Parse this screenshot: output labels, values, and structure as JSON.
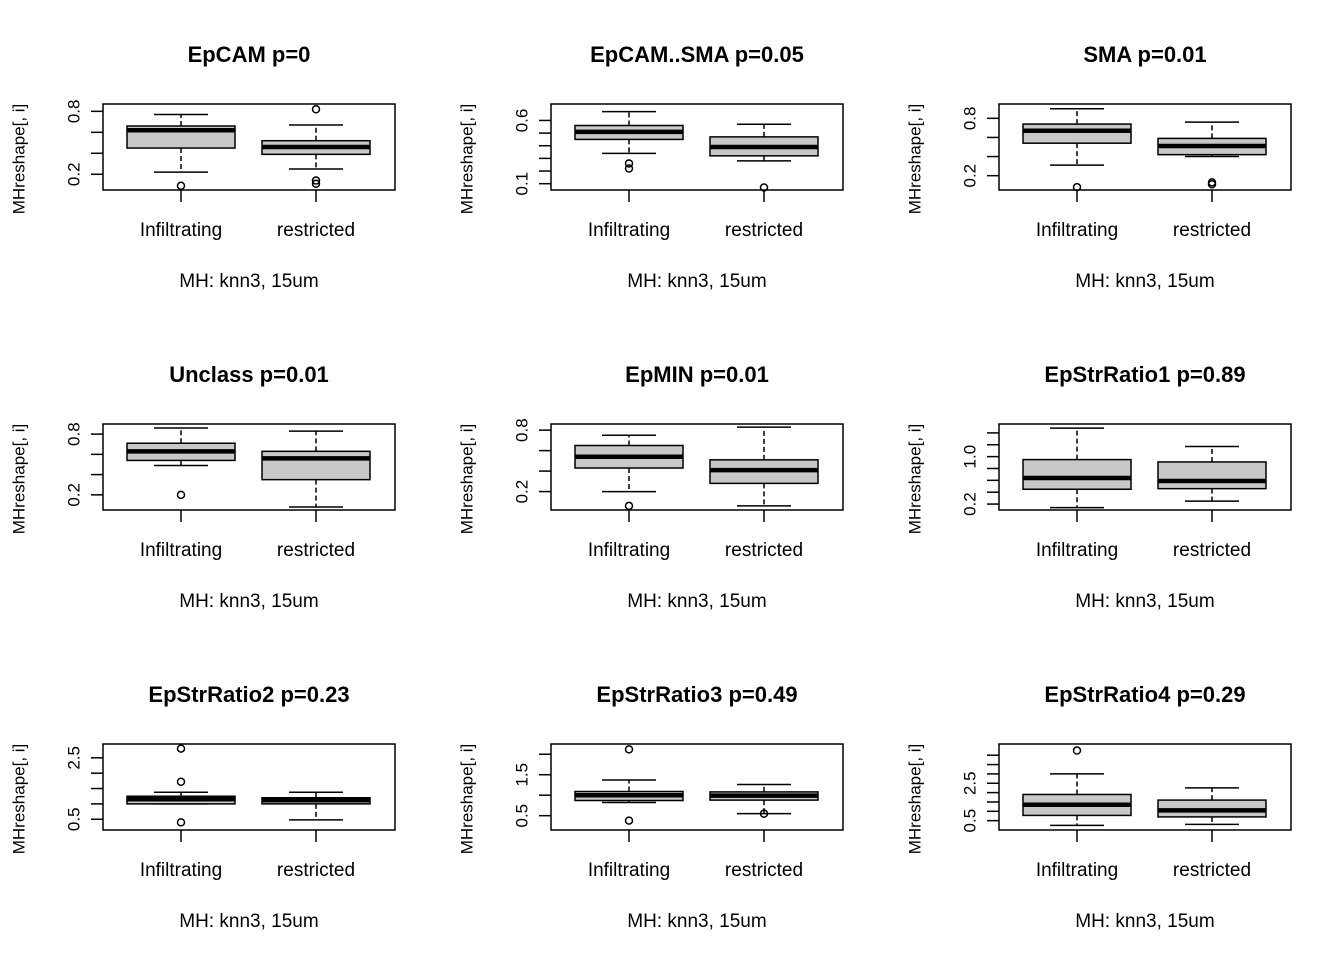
{
  "figure": {
    "styles": {
      "box_fill": "#c8c8c8",
      "line": "#000000",
      "background": "#ffffff"
    }
  },
  "chart_data": [
    {
      "type": "boxplot",
      "title": "EpCAM p=0",
      "xlabel": "MH: knn3, 15um",
      "ylabel": "MHreshape[, i]",
      "categories": [
        "Infiltrating",
        "restricted"
      ],
      "ylim": [
        0.05,
        0.87
      ],
      "yticks": [
        0.2,
        0.4,
        0.6,
        0.8
      ],
      "ytick_labels": [
        "0.2",
        "",
        "",
        "0.8"
      ],
      "boxes": [
        {
          "min": 0.22,
          "q1": 0.45,
          "median": 0.62,
          "q3": 0.66,
          "max": 0.77,
          "outliers": [
            0.09
          ]
        },
        {
          "min": 0.25,
          "q1": 0.39,
          "median": 0.46,
          "q3": 0.52,
          "max": 0.67,
          "outliers": [
            0.11,
            0.14,
            0.82
          ]
        }
      ]
    },
    {
      "type": "boxplot",
      "title": "EpCAM..SMA p=0.05",
      "xlabel": "MH: knn3, 15um",
      "ylabel": "MHreshape[, i]",
      "categories": [
        "Infiltrating",
        "restricted"
      ],
      "ylim": [
        0.05,
        0.73
      ],
      "yticks": [
        0.1,
        0.2,
        0.3,
        0.4,
        0.5,
        0.6
      ],
      "ytick_labels": [
        "0.1",
        "",
        "",
        "",
        "",
        "0.6"
      ],
      "boxes": [
        {
          "min": 0.34,
          "q1": 0.45,
          "median": 0.51,
          "q3": 0.56,
          "max": 0.67,
          "outliers": [
            0.22,
            0.26
          ]
        },
        {
          "min": 0.28,
          "q1": 0.32,
          "median": 0.39,
          "q3": 0.47,
          "max": 0.57,
          "outliers": [
            0.07
          ]
        }
      ]
    },
    {
      "type": "boxplot",
      "title": "SMA p=0.01",
      "xlabel": "MH: knn3, 15um",
      "ylabel": "MHreshape[, i]",
      "categories": [
        "Infiltrating",
        "restricted"
      ],
      "ylim": [
        0.05,
        0.95
      ],
      "yticks": [
        0.2,
        0.4,
        0.6,
        0.8
      ],
      "ytick_labels": [
        "0.2",
        "",
        "",
        "0.8"
      ],
      "boxes": [
        {
          "min": 0.31,
          "q1": 0.54,
          "median": 0.67,
          "q3": 0.74,
          "max": 0.9,
          "outliers": [
            0.08
          ]
        },
        {
          "min": 0.4,
          "q1": 0.42,
          "median": 0.51,
          "q3": 0.59,
          "max": 0.76,
          "outliers": [
            0.11,
            0.13
          ]
        }
      ]
    },
    {
      "type": "boxplot",
      "title": "Unclass p=0.01",
      "xlabel": "MH: knn3, 15um",
      "ylabel": "MHreshape[, i]",
      "categories": [
        "Infiltrating",
        "restricted"
      ],
      "ylim": [
        0.05,
        0.9
      ],
      "yticks": [
        0.2,
        0.4,
        0.6,
        0.8
      ],
      "ytick_labels": [
        "0.2",
        "",
        "",
        "0.8"
      ],
      "boxes": [
        {
          "min": 0.49,
          "q1": 0.54,
          "median": 0.63,
          "q3": 0.71,
          "max": 0.86,
          "outliers": [
            0.2
          ]
        },
        {
          "min": 0.08,
          "q1": 0.35,
          "median": 0.56,
          "q3": 0.63,
          "max": 0.83,
          "outliers": []
        }
      ]
    },
    {
      "type": "boxplot",
      "title": "EpMIN p=0.01",
      "xlabel": "MH: knn3, 15um",
      "ylabel": "MHreshape[, i]",
      "categories": [
        "Infiltrating",
        "restricted"
      ],
      "ylim": [
        0.02,
        0.86
      ],
      "yticks": [
        0.2,
        0.4,
        0.6,
        0.8
      ],
      "ytick_labels": [
        "0.2",
        "",
        "",
        "0.8"
      ],
      "boxes": [
        {
          "min": 0.2,
          "q1": 0.43,
          "median": 0.54,
          "q3": 0.65,
          "max": 0.75,
          "outliers": [
            0.06
          ]
        },
        {
          "min": 0.06,
          "q1": 0.28,
          "median": 0.41,
          "q3": 0.51,
          "max": 0.83,
          "outliers": []
        }
      ]
    },
    {
      "type": "boxplot",
      "title": "EpStrRatio1 p=0.89",
      "xlabel": "MH: knn3, 15um",
      "ylabel": "MHreshape[, i]",
      "categories": [
        "Infiltrating",
        "restricted"
      ],
      "ylim": [
        0.1,
        1.55
      ],
      "yticks": [
        0.2,
        0.4,
        0.6,
        0.8,
        1.0,
        1.2,
        1.4
      ],
      "ytick_labels": [
        "0.2",
        "",
        "",
        "",
        "1.0",
        "",
        ""
      ],
      "boxes": [
        {
          "min": 0.14,
          "q1": 0.45,
          "median": 0.64,
          "q3": 0.95,
          "max": 1.48,
          "outliers": []
        },
        {
          "min": 0.25,
          "q1": 0.46,
          "median": 0.59,
          "q3": 0.91,
          "max": 1.17,
          "outliers": []
        }
      ]
    },
    {
      "type": "boxplot",
      "title": "EpStrRatio2 p=0.23",
      "xlabel": "MH: knn3, 15um",
      "ylabel": "MHreshape[, i]",
      "categories": [
        "Infiltrating",
        "restricted"
      ],
      "ylim": [
        0.15,
        2.95
      ],
      "yticks": [
        0.5,
        1.0,
        1.5,
        2.0,
        2.5
      ],
      "ytick_labels": [
        "0.5",
        "",
        "",
        "",
        "2.5"
      ],
      "boxes": [
        {
          "min": 1.0,
          "q1": 1.0,
          "median": 1.15,
          "q3": 1.25,
          "max": 1.38,
          "outliers": [
            0.4,
            1.72,
            2.8
          ]
        },
        {
          "min": 0.48,
          "q1": 1.0,
          "median": 1.12,
          "q3": 1.2,
          "max": 1.38,
          "outliers": []
        }
      ]
    },
    {
      "type": "boxplot",
      "title": "EpStrRatio3 p=0.49",
      "xlabel": "MH: knn3, 15um",
      "ylabel": "MHreshape[, i]",
      "categories": [
        "Infiltrating",
        "restricted"
      ],
      "ylim": [
        0.15,
        2.25
      ],
      "yticks": [
        0.5,
        1.0,
        1.5,
        2.0
      ],
      "ytick_labels": [
        "0.5",
        "",
        "1.5",
        ""
      ],
      "boxes": [
        {
          "min": 0.82,
          "q1": 0.87,
          "median": 1.0,
          "q3": 1.09,
          "max": 1.37,
          "outliers": [
            0.38,
            2.12
          ]
        },
        {
          "min": 0.55,
          "q1": 0.88,
          "median": 0.99,
          "q3": 1.08,
          "max": 1.26,
          "outliers": [
            0.55
          ]
        }
      ]
    },
    {
      "type": "boxplot",
      "title": "EpStrRatio4 p=0.29",
      "xlabel": "MH: knn3, 15um",
      "ylabel": "MHreshape[, i]",
      "categories": [
        "Infiltrating",
        "restricted"
      ],
      "ylim": [
        0.0,
        4.6
      ],
      "yticks": [
        0.5,
        1.0,
        1.5,
        2.0,
        2.5,
        3.0,
        3.5,
        4.0
      ],
      "ytick_labels": [
        "0.5",
        "",
        "",
        "",
        "2.5",
        "",
        "",
        ""
      ],
      "boxes": [
        {
          "min": 0.25,
          "q1": 0.78,
          "median": 1.35,
          "q3": 1.9,
          "max": 3.0,
          "outliers": [
            4.25
          ]
        },
        {
          "min": 0.3,
          "q1": 0.7,
          "median": 1.05,
          "q3": 1.6,
          "max": 2.25,
          "outliers": []
        }
      ]
    }
  ]
}
